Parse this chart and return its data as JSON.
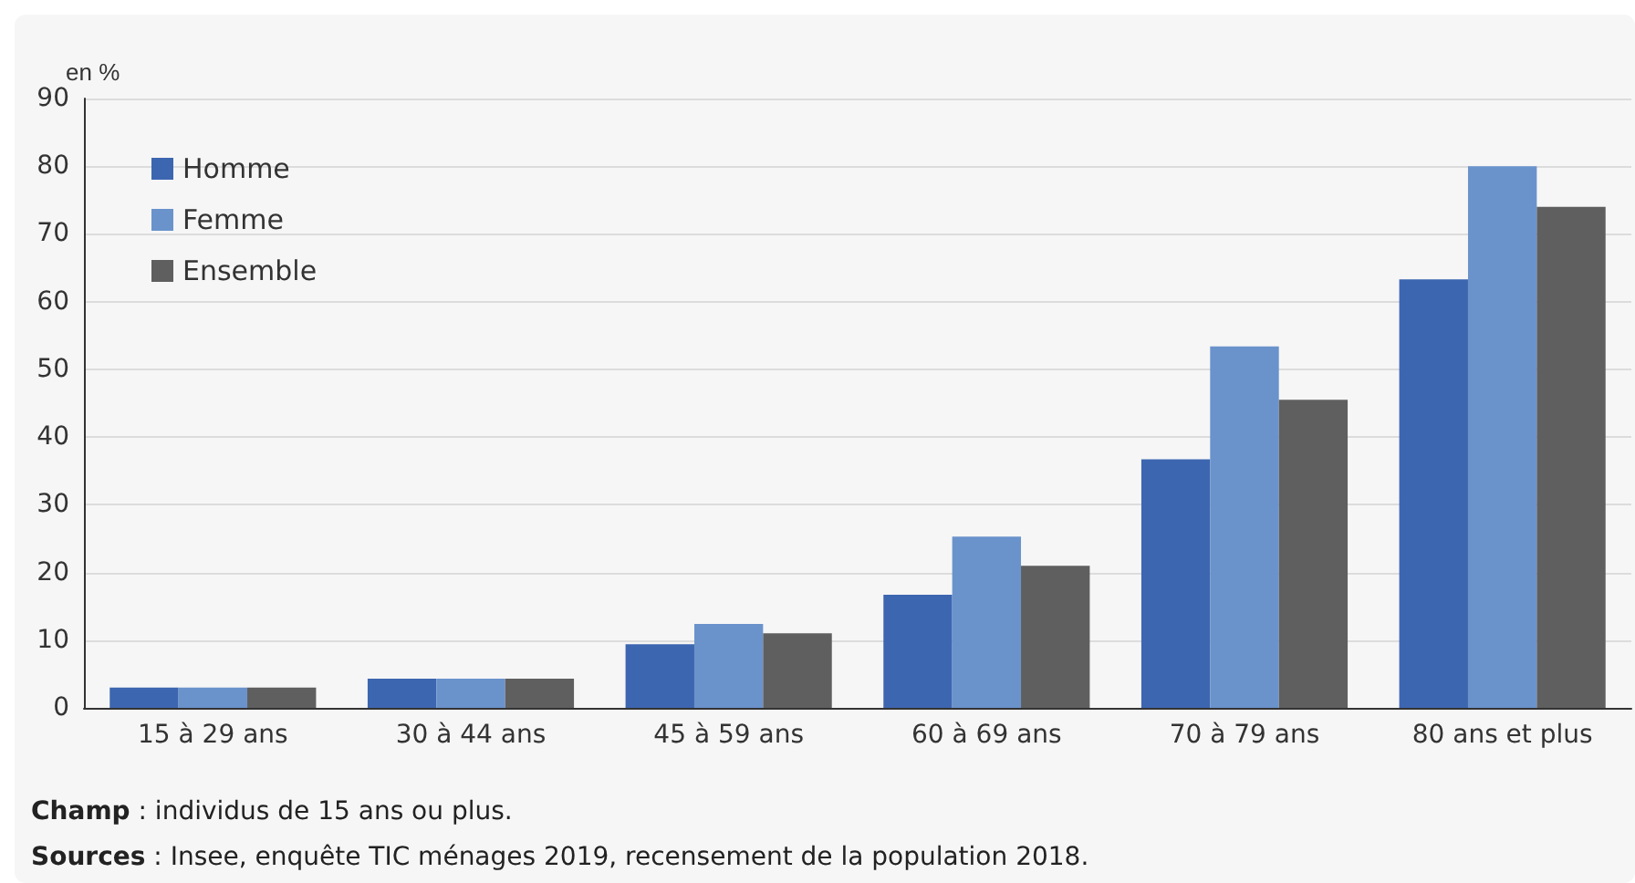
{
  "chart_data": {
    "type": "bar",
    "ylabel": "en %",
    "categories": [
      "15 à 29 ans",
      "30 à 44 ans",
      "45 à 59 ans",
      "60 à 69 ans",
      "70 à 79 ans",
      "80 ans et plus"
    ],
    "series": [
      {
        "name": "Homme",
        "color": "#3d66b0",
        "values": [
          3,
          4.3,
          9.4,
          16.7,
          36.7,
          63.3
        ]
      },
      {
        "name": "Femme",
        "color": "#6a93cc",
        "values": [
          3,
          4.3,
          12.4,
          25.3,
          53.4,
          80
        ]
      },
      {
        "name": "Ensemble",
        "color": "#5f5f5f",
        "values": [
          3,
          4.3,
          11,
          21,
          45.5,
          74
        ]
      }
    ],
    "ylim": [
      0,
      90
    ],
    "yticks": [
      0,
      10,
      20,
      30,
      40,
      50,
      60,
      70,
      80,
      90
    ],
    "grid": "y",
    "legend": "top left",
    "annotations": [
      "Champ : individus de 15 ans ou plus.",
      "Sources : Insee, enquête TIC ménages 2019, recensement de la population 2018."
    ]
  }
}
